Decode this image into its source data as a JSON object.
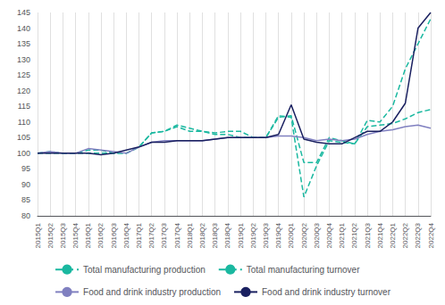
{
  "chart_data": {
    "type": "line",
    "categories": [
      "2015Q1",
      "2015Q2",
      "2015Q3",
      "2015Q4",
      "2016Q1",
      "2016Q2",
      "2016Q3",
      "2016Q4",
      "2017Q1",
      "2017Q2",
      "2017Q3",
      "2017Q4",
      "2018Q1",
      "2018Q2",
      "2018Q3",
      "2018Q4",
      "2019Q1",
      "2019Q2",
      "2019Q3",
      "2019Q4",
      "2020Q1",
      "2020Q2",
      "2020Q3",
      "2020Q4",
      "2021Q1",
      "2021Q2",
      "2021Q3",
      "2021Q4",
      "2022Q1",
      "2022Q2",
      "2022Q3",
      "2022Q4"
    ],
    "series": [
      {
        "name": "Total manufacturing production",
        "color": "#1ab8a0",
        "line_style": "dashed",
        "values": [
          100,
          100.5,
          100,
          100,
          101,
          101,
          100,
          100,
          102,
          106.5,
          107,
          108.5,
          107,
          107,
          106.5,
          107,
          107,
          105,
          105,
          111.5,
          112,
          97,
          97,
          105,
          104,
          103,
          108.5,
          109,
          109.5,
          111,
          113,
          114
        ]
      },
      {
        "name": "Total manufacturing turnover",
        "color": "#1ab8a0",
        "line_style": "dashed",
        "values": [
          100,
          100,
          100,
          100,
          100,
          100,
          100,
          100,
          102,
          106.5,
          107,
          109,
          108,
          107,
          106,
          106,
          105,
          105,
          105,
          112,
          111.5,
          86,
          96,
          104,
          103.5,
          103,
          110.5,
          110,
          115,
          127,
          135,
          143
        ]
      },
      {
        "name": "Food and drink industry production",
        "color": "#8080c0",
        "line_style": "solid",
        "values": [
          100,
          100.5,
          100,
          100,
          101.5,
          101,
          100.5,
          100,
          102,
          103.5,
          104,
          104,
          104,
          104,
          104.5,
          105,
          105,
          105,
          105,
          105.5,
          105.5,
          105,
          104,
          104.5,
          104,
          104.5,
          106,
          107,
          107.5,
          108.5,
          109,
          108
        ]
      },
      {
        "name": "Food and drink industry turnover",
        "color": "#1a2060",
        "line_style": "solid",
        "values": [
          100,
          100,
          100,
          100,
          100,
          99.5,
          100,
          101,
          102,
          103.5,
          103.5,
          104,
          104,
          104,
          104.5,
          105,
          105,
          105,
          105,
          106,
          115.5,
          104.5,
          103.5,
          103,
          103,
          105,
          107,
          107,
          110,
          116,
          140,
          145
        ]
      }
    ],
    "ylim": [
      80,
      145
    ],
    "yticks": [
      80,
      85,
      90,
      95,
      100,
      105,
      110,
      115,
      120,
      125,
      130,
      135,
      140,
      145
    ],
    "grid": "x",
    "legend": "bottom"
  }
}
